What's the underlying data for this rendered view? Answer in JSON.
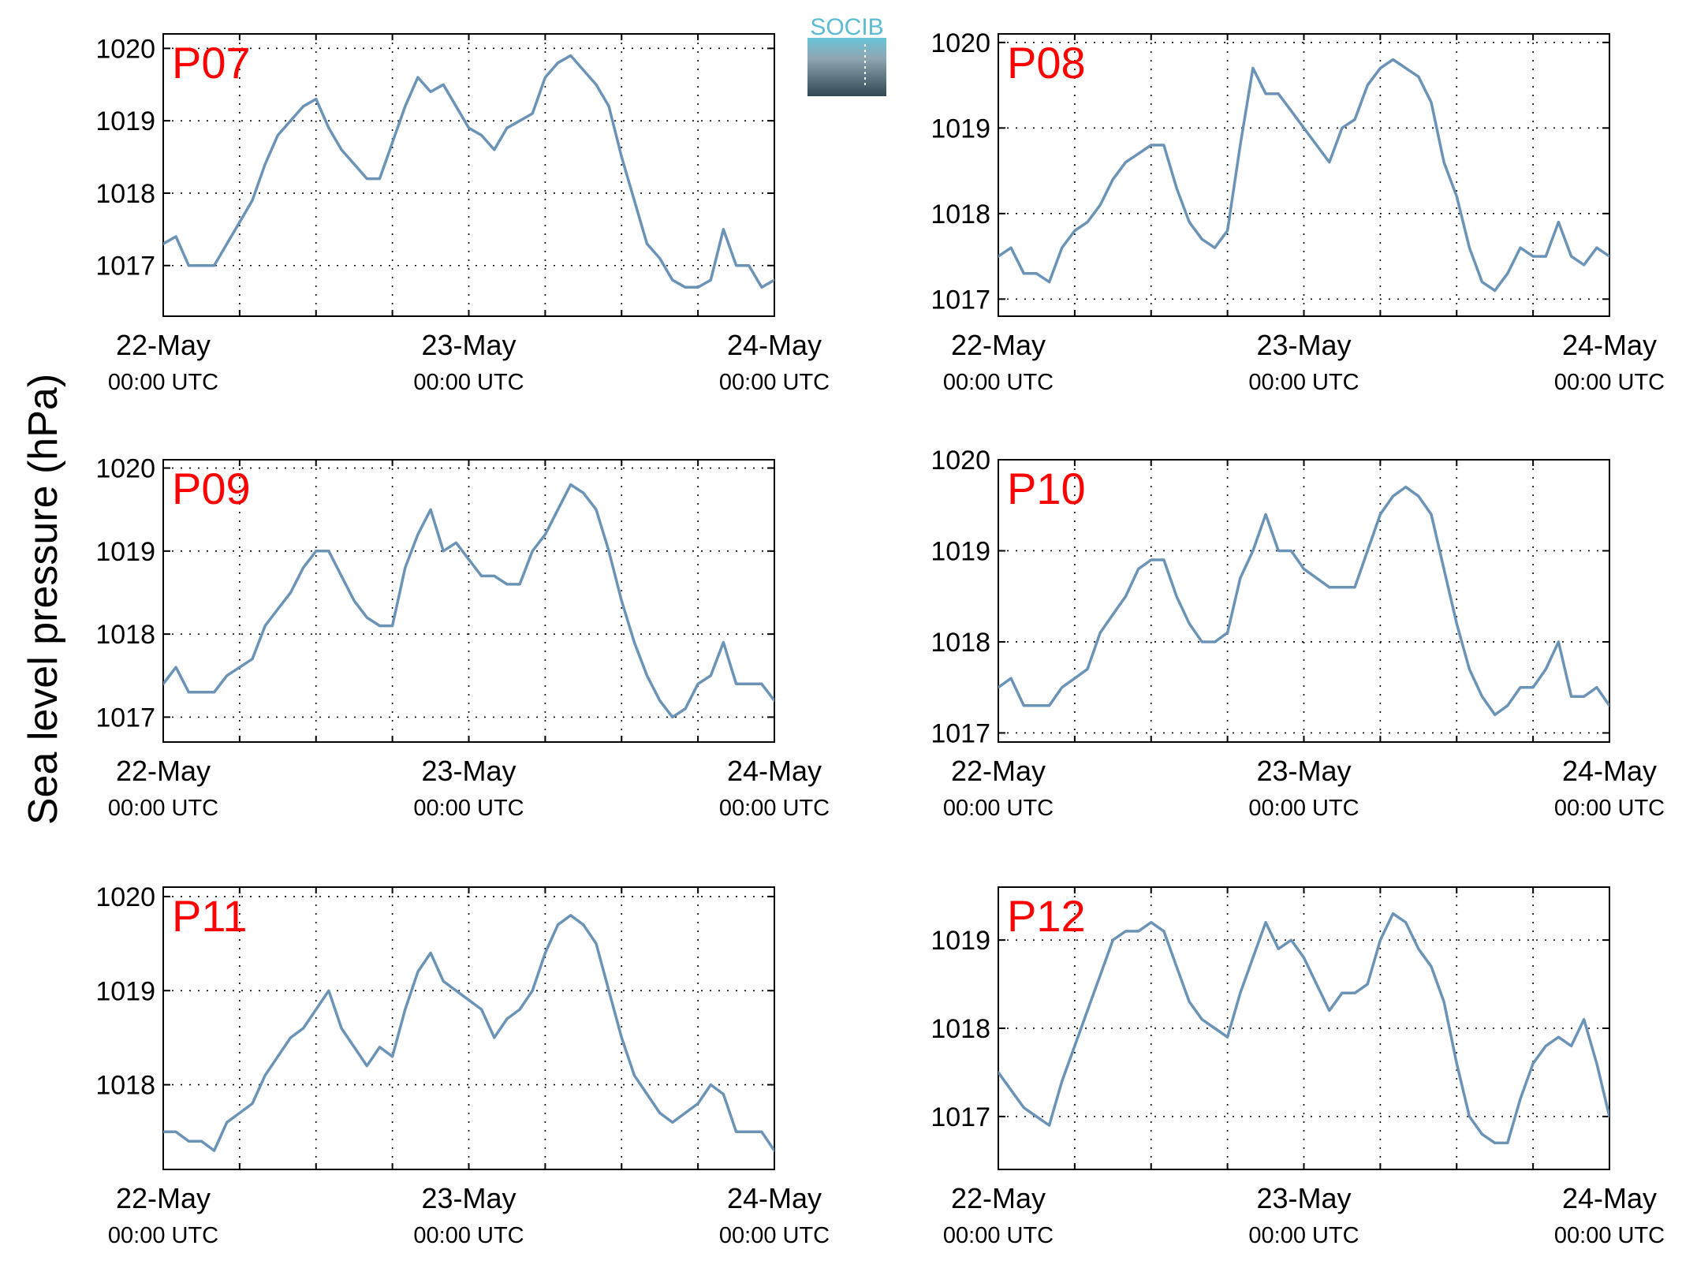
{
  "figure": {
    "ylabel": "Sea level pressure (hPa)",
    "logo_text": "SOCIB",
    "line_color": "#6b93b6",
    "station_label_color": "#ff0000"
  },
  "chart_data": [
    {
      "type": "line",
      "station": "P07",
      "ylim": [
        1016.3,
        1020.2
      ],
      "yticks": [
        1017,
        1018,
        1019,
        1020
      ],
      "xlim": [
        0,
        48
      ],
      "xticks": [
        0,
        24,
        48
      ],
      "xtick_labels": [
        [
          "22-May",
          "00:00 UTC"
        ],
        [
          "23-May",
          "00:00 UTC"
        ],
        [
          "24-May",
          "00:00 UTC"
        ]
      ],
      "grid": true,
      "x": [
        0,
        1,
        2,
        3,
        4,
        5,
        6,
        7,
        8,
        9,
        10,
        11,
        12,
        13,
        14,
        15,
        16,
        17,
        18,
        19,
        20,
        21,
        22,
        23,
        24,
        25,
        26,
        27,
        28,
        29,
        30,
        31,
        32,
        33,
        34,
        35,
        36,
        37,
        38,
        39,
        40,
        41,
        42,
        43,
        44,
        45,
        46,
        47,
        48
      ],
      "y": [
        1017.3,
        1017.4,
        1017.0,
        1017.0,
        1017.0,
        1017.3,
        1017.6,
        1017.9,
        1018.4,
        1018.8,
        1019.0,
        1019.2,
        1019.3,
        1018.9,
        1018.6,
        1018.4,
        1018.2,
        1018.2,
        1018.7,
        1019.2,
        1019.6,
        1019.4,
        1019.5,
        1019.2,
        1018.9,
        1018.8,
        1018.6,
        1018.9,
        1019.0,
        1019.1,
        1019.6,
        1019.8,
        1019.9,
        1019.7,
        1019.5,
        1019.2,
        1018.5,
        1017.9,
        1017.3,
        1017.1,
        1016.8,
        1016.7,
        1016.7,
        1016.8,
        1017.5,
        1017.0,
        1017.0,
        1016.7,
        1016.8
      ]
    },
    {
      "type": "line",
      "station": "P08",
      "ylim": [
        1016.8,
        1020.1
      ],
      "yticks": [
        1017,
        1018,
        1019,
        1020
      ],
      "xlim": [
        0,
        48
      ],
      "xticks": [
        0,
        24,
        48
      ],
      "xtick_labels": [
        [
          "22-May",
          "00:00 UTC"
        ],
        [
          "23-May",
          "00:00 UTC"
        ],
        [
          "24-May",
          "00:00 UTC"
        ]
      ],
      "grid": true,
      "x": [
        0,
        1,
        2,
        3,
        4,
        5,
        6,
        7,
        8,
        9,
        10,
        11,
        12,
        13,
        14,
        15,
        16,
        17,
        18,
        19,
        20,
        21,
        22,
        23,
        24,
        25,
        26,
        27,
        28,
        29,
        30,
        31,
        32,
        33,
        34,
        35,
        36,
        37,
        38,
        39,
        40,
        41,
        42,
        43,
        44,
        45,
        46,
        47,
        48
      ],
      "y": [
        1017.5,
        1017.6,
        1017.3,
        1017.3,
        1017.2,
        1017.6,
        1017.8,
        1017.9,
        1018.1,
        1018.4,
        1018.6,
        1018.7,
        1018.8,
        1018.8,
        1018.3,
        1017.9,
        1017.7,
        1017.6,
        1017.8,
        1018.8,
        1019.7,
        1019.4,
        1019.4,
        1019.2,
        1019.0,
        1018.8,
        1018.6,
        1019.0,
        1019.1,
        1019.5,
        1019.7,
        1019.8,
        1019.7,
        1019.6,
        1019.3,
        1018.6,
        1018.2,
        1017.6,
        1017.2,
        1017.1,
        1017.3,
        1017.6,
        1017.5,
        1017.5,
        1017.9,
        1017.5,
        1017.4,
        1017.6,
        1017.5
      ]
    },
    {
      "type": "line",
      "station": "P09",
      "ylim": [
        1016.7,
        1020.1
      ],
      "yticks": [
        1017,
        1018,
        1019,
        1020
      ],
      "xlim": [
        0,
        48
      ],
      "xticks": [
        0,
        24,
        48
      ],
      "xtick_labels": [
        [
          "22-May",
          "00:00 UTC"
        ],
        [
          "23-May",
          "00:00 UTC"
        ],
        [
          "24-May",
          "00:00 UTC"
        ]
      ],
      "grid": true,
      "x": [
        0,
        1,
        2,
        3,
        4,
        5,
        6,
        7,
        8,
        9,
        10,
        11,
        12,
        13,
        14,
        15,
        16,
        17,
        18,
        19,
        20,
        21,
        22,
        23,
        24,
        25,
        26,
        27,
        28,
        29,
        30,
        31,
        32,
        33,
        34,
        35,
        36,
        37,
        38,
        39,
        40,
        41,
        42,
        43,
        44,
        45,
        46,
        47,
        48
      ],
      "y": [
        1017.4,
        1017.6,
        1017.3,
        1017.3,
        1017.3,
        1017.5,
        1017.6,
        1017.7,
        1018.1,
        1018.3,
        1018.5,
        1018.8,
        1019.0,
        1019.0,
        1018.7,
        1018.4,
        1018.2,
        1018.1,
        1018.1,
        1018.8,
        1019.2,
        1019.5,
        1019.0,
        1019.1,
        1018.9,
        1018.7,
        1018.7,
        1018.6,
        1018.6,
        1019.0,
        1019.2,
        1019.5,
        1019.8,
        1019.7,
        1019.5,
        1019.0,
        1018.4,
        1017.9,
        1017.5,
        1017.2,
        1017.0,
        1017.1,
        1017.4,
        1017.5,
        1017.9,
        1017.4,
        1017.4,
        1017.4,
        1017.2
      ]
    },
    {
      "type": "line",
      "station": "P10",
      "ylim": [
        1016.9,
        1020.0
      ],
      "yticks": [
        1017,
        1018,
        1019,
        1020
      ],
      "xlim": [
        0,
        48
      ],
      "xticks": [
        0,
        24,
        48
      ],
      "xtick_labels": [
        [
          "22-May",
          "00:00 UTC"
        ],
        [
          "23-May",
          "00:00 UTC"
        ],
        [
          "24-May",
          "00:00 UTC"
        ]
      ],
      "grid": true,
      "x": [
        0,
        1,
        2,
        3,
        4,
        5,
        6,
        7,
        8,
        9,
        10,
        11,
        12,
        13,
        14,
        15,
        16,
        17,
        18,
        19,
        20,
        21,
        22,
        23,
        24,
        25,
        26,
        27,
        28,
        29,
        30,
        31,
        32,
        33,
        34,
        35,
        36,
        37,
        38,
        39,
        40,
        41,
        42,
        43,
        44,
        45,
        46,
        47,
        48
      ],
      "y": [
        1017.5,
        1017.6,
        1017.3,
        1017.3,
        1017.3,
        1017.5,
        1017.6,
        1017.7,
        1018.1,
        1018.3,
        1018.5,
        1018.8,
        1018.9,
        1018.9,
        1018.5,
        1018.2,
        1018.0,
        1018.0,
        1018.1,
        1018.7,
        1019.0,
        1019.4,
        1019.0,
        1019.0,
        1018.8,
        1018.7,
        1018.6,
        1018.6,
        1018.6,
        1019.0,
        1019.4,
        1019.6,
        1019.7,
        1019.6,
        1019.4,
        1018.8,
        1018.2,
        1017.7,
        1017.4,
        1017.2,
        1017.3,
        1017.5,
        1017.5,
        1017.7,
        1018.0,
        1017.4,
        1017.4,
        1017.5,
        1017.3
      ]
    },
    {
      "type": "line",
      "station": "P11",
      "ylim": [
        1017.1,
        1020.1
      ],
      "yticks": [
        1018,
        1019,
        1020
      ],
      "xlim": [
        0,
        48
      ],
      "xticks": [
        0,
        24,
        48
      ],
      "xtick_labels": [
        [
          "22-May",
          "00:00 UTC"
        ],
        [
          "23-May",
          "00:00 UTC"
        ],
        [
          "24-May",
          "00:00 UTC"
        ]
      ],
      "grid": true,
      "x": [
        0,
        1,
        2,
        3,
        4,
        5,
        6,
        7,
        8,
        9,
        10,
        11,
        12,
        13,
        14,
        15,
        16,
        17,
        18,
        19,
        20,
        21,
        22,
        23,
        24,
        25,
        26,
        27,
        28,
        29,
        30,
        31,
        32,
        33,
        34,
        35,
        36,
        37,
        38,
        39,
        40,
        41,
        42,
        43,
        44,
        45,
        46,
        47,
        48
      ],
      "y": [
        1017.5,
        1017.5,
        1017.4,
        1017.4,
        1017.3,
        1017.6,
        1017.7,
        1017.8,
        1018.1,
        1018.3,
        1018.5,
        1018.6,
        1018.8,
        1019.0,
        1018.6,
        1018.4,
        1018.2,
        1018.4,
        1018.3,
        1018.8,
        1019.2,
        1019.4,
        1019.1,
        1019.0,
        1018.9,
        1018.8,
        1018.5,
        1018.7,
        1018.8,
        1019.0,
        1019.4,
        1019.7,
        1019.8,
        1019.7,
        1019.5,
        1019.0,
        1018.5,
        1018.1,
        1017.9,
        1017.7,
        1017.6,
        1017.7,
        1017.8,
        1018.0,
        1017.9,
        1017.5,
        1017.5,
        1017.5,
        1017.3
      ]
    },
    {
      "type": "line",
      "station": "P12",
      "ylim": [
        1016.4,
        1019.6
      ],
      "yticks": [
        1017,
        1018,
        1019
      ],
      "xlim": [
        0,
        48
      ],
      "xticks": [
        0,
        24,
        48
      ],
      "xtick_labels": [
        [
          "22-May",
          "00:00 UTC"
        ],
        [
          "23-May",
          "00:00 UTC"
        ],
        [
          "24-May",
          "00:00 UTC"
        ]
      ],
      "grid": true,
      "x": [
        0,
        1,
        2,
        3,
        4,
        5,
        6,
        7,
        8,
        9,
        10,
        11,
        12,
        13,
        14,
        15,
        16,
        17,
        18,
        19,
        20,
        21,
        22,
        23,
        24,
        25,
        26,
        27,
        28,
        29,
        30,
        31,
        32,
        33,
        34,
        35,
        36,
        37,
        38,
        39,
        40,
        41,
        42,
        43,
        44,
        45,
        46,
        47,
        48
      ],
      "y": [
        1017.5,
        1017.3,
        1017.1,
        1017.0,
        1016.9,
        1017.4,
        1017.8,
        1018.2,
        1018.6,
        1019.0,
        1019.1,
        1019.1,
        1019.2,
        1019.1,
        1018.7,
        1018.3,
        1018.1,
        1018.0,
        1017.9,
        1018.4,
        1018.8,
        1019.2,
        1018.9,
        1019.0,
        1018.8,
        1018.5,
        1018.2,
        1018.4,
        1018.4,
        1018.5,
        1019.0,
        1019.3,
        1019.2,
        1018.9,
        1018.7,
        1018.3,
        1017.6,
        1017.0,
        1016.8,
        1016.7,
        1016.7,
        1017.2,
        1017.6,
        1017.8,
        1017.9,
        1017.8,
        1018.1,
        1017.6,
        1017.0
      ]
    }
  ]
}
